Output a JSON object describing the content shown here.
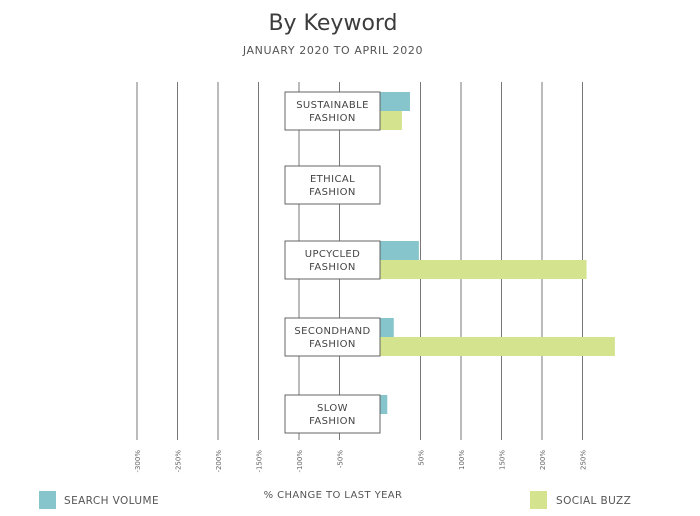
{
  "chart_data": {
    "type": "bar",
    "orientation": "horizontal",
    "title": "By Keyword",
    "subtitle": "JANUARY 2020 TO APRIL 2020",
    "xlabel": "% CHANGE TO LAST YEAR",
    "categories": [
      [
        "SUSTAINABLE",
        "FASHION"
      ],
      [
        "ETHICAL",
        "FASHION"
      ],
      [
        "UPCYCLED",
        "FASHION"
      ],
      [
        "SECONDHAND",
        "FASHION"
      ],
      [
        "SLOW",
        "FASHION"
      ]
    ],
    "series": [
      {
        "name": "SEARCH VOLUME",
        "color": "#86c5cc",
        "values": [
          37,
          -14,
          48,
          17,
          9
        ]
      },
      {
        "name": "SOCIAL BUZZ",
        "color": "#d3e38e",
        "values": [
          27,
          -13,
          255,
          290,
          -23
        ]
      }
    ],
    "ticks": [
      {
        "value": -300,
        "label": "-300%"
      },
      {
        "value": -250,
        "label": "-250%"
      },
      {
        "value": -200,
        "label": "-200%"
      },
      {
        "value": -150,
        "label": "-150%"
      },
      {
        "value": -100,
        "label": "-100%"
      },
      {
        "value": -50,
        "label": "-50%"
      },
      {
        "value": 50,
        "label": "50%"
      },
      {
        "value": 100,
        "label": "100%"
      },
      {
        "value": 150,
        "label": "150%"
      },
      {
        "value": 200,
        "label": "200%"
      },
      {
        "value": 250,
        "label": "250%"
      }
    ],
    "xlim": [
      -300,
      300
    ],
    "grid": true,
    "legend": {
      "position": "bottom",
      "items": [
        "SEARCH VOLUME",
        "SOCIAL BUZZ"
      ]
    }
  }
}
